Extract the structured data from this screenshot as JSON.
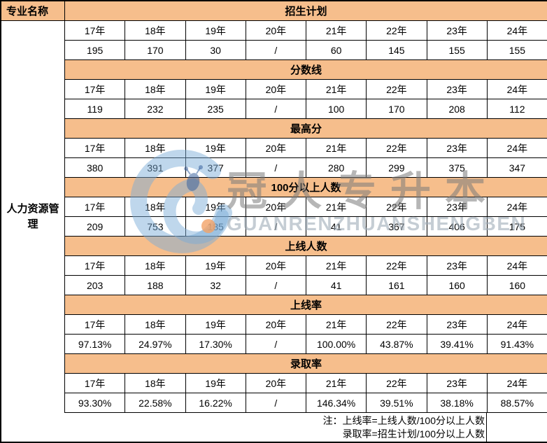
{
  "chart_data": {
    "type": "table",
    "corner_header": "专业名称",
    "row_header": "人力资源管理",
    "years": [
      "17年",
      "18年",
      "19年",
      "20年",
      "21年",
      "22年",
      "23年",
      "24年"
    ],
    "sections": [
      {
        "label": "招生计划",
        "values": [
          "195",
          "170",
          "30",
          "/",
          "60",
          "145",
          "155",
          "155"
        ]
      },
      {
        "label": "分数线",
        "values": [
          "119",
          "232",
          "235",
          "/",
          "100",
          "170",
          "208",
          "112"
        ]
      },
      {
        "label": "最高分",
        "values": [
          "380",
          "391",
          "377",
          "/",
          "280",
          "299",
          "375",
          "347"
        ]
      },
      {
        "label": "100分以上人数",
        "values": [
          "209",
          "753",
          "185",
          "/",
          "41",
          "367",
          "406",
          "175"
        ]
      },
      {
        "label": "上线人数",
        "values": [
          "203",
          "188",
          "32",
          "/",
          "41",
          "161",
          "160",
          "160"
        ]
      },
      {
        "label": "上线率",
        "values": [
          "97.13%",
          "24.97%",
          "17.30%",
          "/",
          "100.00%",
          "43.87%",
          "39.41%",
          "91.43%"
        ]
      },
      {
        "label": "录取率",
        "values": [
          "93.30%",
          "22.58%",
          "16.22%",
          "/",
          "146.34%",
          "39.51%",
          "38.18%",
          "88.57%"
        ]
      }
    ],
    "notes": [
      "注：上线率=上线人数/100分以上人数",
      "录取率=招生计划/100分以上人数"
    ],
    "layout": {
      "grid": "on",
      "band_rows": "section headers on orange bands"
    }
  },
  "watermark": {
    "logo": "guanren-g-bee-logo",
    "text_cn": "冠人专升本",
    "text_en": "GUANRENZHUANSHENGBEN"
  },
  "colors": {
    "band_orange": "#F6BE8C",
    "border_black": "#000000",
    "watermark_blue": "#7AABD7",
    "watermark_gray": "#7A7A7A",
    "watermark_dot_orange": "#F3A368"
  }
}
